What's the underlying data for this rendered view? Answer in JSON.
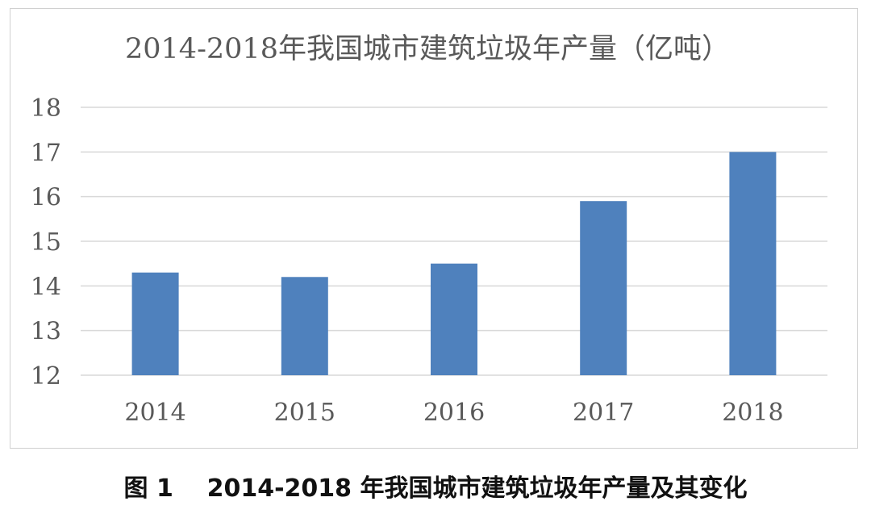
{
  "caption": "图 1    2014-2018 年我国城市建筑垃圾年产量及其变化",
  "chart_data": {
    "type": "bar",
    "title": "2014-2018年我国城市建筑垃圾年产量（亿吨）",
    "categories": [
      "2014",
      "2015",
      "2016",
      "2017",
      "2018"
    ],
    "values": [
      14.3,
      14.2,
      14.5,
      15.9,
      17.0
    ],
    "ylim": [
      12,
      18
    ],
    "yticks": [
      12,
      13,
      14,
      15,
      16,
      17,
      18
    ],
    "grid": true,
    "bar_color": "#4f81bd",
    "gridline_color": "#d9d9d9"
  }
}
